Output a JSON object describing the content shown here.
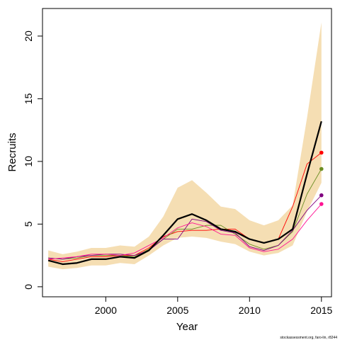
{
  "chart_data": {
    "type": "line",
    "xlabel": "Year",
    "ylabel": "Recruits",
    "xlim": [
      1995.6,
      2015.7
    ],
    "ylim": [
      -0.8,
      22.2
    ],
    "x_ticks": [
      2000,
      2005,
      2010,
      2015
    ],
    "y_ticks": [
      0,
      5,
      10,
      15,
      20
    ],
    "grid": false,
    "legend": "none",
    "footnote": "stockassessment.org, faro-lin, r8244",
    "x": [
      1996,
      1997,
      1998,
      1999,
      2000,
      2001,
      2002,
      2003,
      2004,
      2005,
      2006,
      2007,
      2008,
      2009,
      2010,
      2011,
      2012,
      2013,
      2014,
      2015
    ],
    "confidence_band": {
      "color": "#f5deb3",
      "lower": [
        1.6,
        1.4,
        1.5,
        1.7,
        1.7,
        1.9,
        1.8,
        2.5,
        3.3,
        3.9,
        4.0,
        3.9,
        3.6,
        3.4,
        2.8,
        2.5,
        2.7,
        3.3,
        6.0,
        8.3
      ],
      "upper": [
        2.9,
        2.6,
        2.8,
        3.1,
        3.1,
        3.3,
        3.2,
        4.0,
        5.6,
        7.9,
        8.5,
        7.5,
        6.4,
        6.2,
        5.3,
        4.9,
        5.3,
        6.5,
        13.5,
        21.1
      ]
    },
    "series": [
      {
        "color": "#000000",
        "width": 2.2,
        "values": [
          2.1,
          1.8,
          1.9,
          2.2,
          2.2,
          2.4,
          2.3,
          2.9,
          4.1,
          5.4,
          5.8,
          5.3,
          4.6,
          4.4,
          3.8,
          3.5,
          3.8,
          4.6,
          9.0,
          13.2
        ]
      },
      {
        "color": "#ff0000",
        "width": 0.9,
        "values": [
          2.2,
          2.0,
          2.2,
          2.4,
          2.4,
          2.5,
          2.5,
          3.1,
          4.0,
          4.4,
          4.5,
          4.5,
          4.6,
          4.6,
          3.8,
          3.5,
          3.8,
          6.4,
          9.8,
          10.7
        ]
      },
      {
        "color": "#6b8e23",
        "width": 0.9,
        "values": [
          2.3,
          2.2,
          2.3,
          2.5,
          2.5,
          2.5,
          2.4,
          3.0,
          3.8,
          4.6,
          4.6,
          4.9,
          4.9,
          4.2,
          3.4,
          3.0,
          3.3,
          4.4,
          7.4,
          9.4
        ]
      },
      {
        "color": "#800080",
        "width": 0.9,
        "values": [
          2.3,
          2.2,
          2.4,
          2.5,
          2.6,
          2.6,
          2.5,
          2.9,
          3.8,
          3.8,
          5.4,
          5.2,
          4.5,
          4.3,
          3.2,
          2.9,
          3.3,
          4.5,
          6.1,
          7.3
        ]
      },
      {
        "color": "#ff1493",
        "width": 0.9,
        "values": [
          2.2,
          2.3,
          2.4,
          2.6,
          2.6,
          2.5,
          2.7,
          3.3,
          3.9,
          4.7,
          5.1,
          4.8,
          4.2,
          4.1,
          3.1,
          2.8,
          3.0,
          3.8,
          5.3,
          6.6
        ]
      }
    ]
  }
}
